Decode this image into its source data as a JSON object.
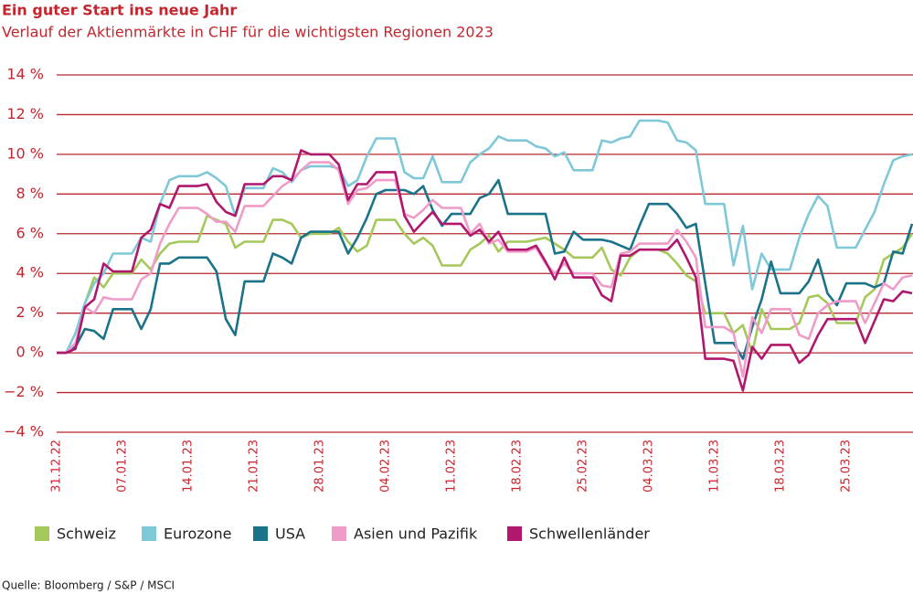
{
  "chart_data": {
    "type": "line",
    "title": "Ein guter Start ins neue Jahr",
    "subtitle": "Verlauf der Aktienmärkte in CHF für die wichtigsten Regionen 2023",
    "source": "Quelle: Bloomberg / S&P / MSCI",
    "legend": "bottom",
    "grid": true,
    "ylim": [
      -4,
      14
    ],
    "yticks": [
      {
        "value": -4,
        "label": "−4 %"
      },
      {
        "value": -2,
        "label": "−2 %"
      },
      {
        "value": 0,
        "label": "0 %"
      },
      {
        "value": 2,
        "label": "2 %"
      },
      {
        "value": 4,
        "label": "4 %"
      },
      {
        "value": 6,
        "label": "6 %"
      },
      {
        "value": 8,
        "label": "8 %"
      },
      {
        "value": 10,
        "label": "10 %"
      },
      {
        "value": 12,
        "label": "12 %"
      },
      {
        "value": 14,
        "label": "14 %"
      }
    ],
    "categories": [
      "31.12.22",
      null,
      null,
      null,
      null,
      null,
      null,
      "07.01.23",
      null,
      null,
      null,
      null,
      null,
      null,
      "14.01.23",
      null,
      null,
      null,
      null,
      null,
      null,
      "21.01.23",
      null,
      null,
      null,
      null,
      null,
      null,
      "28.01.23",
      null,
      null,
      null,
      null,
      null,
      null,
      "04.02.23",
      null,
      null,
      null,
      null,
      null,
      null,
      "11.02.23",
      null,
      null,
      null,
      null,
      null,
      null,
      "18.02.23",
      null,
      null,
      null,
      null,
      null,
      null,
      "25.02.23",
      null,
      null,
      null,
      null,
      null,
      null,
      "04.03.23",
      null,
      null,
      null,
      null,
      null,
      null,
      "11.03.23",
      null,
      null,
      null,
      null,
      null,
      null,
      "18.03.23",
      null,
      null,
      null,
      null,
      null,
      null,
      "25.03.23",
      null,
      null,
      null,
      null,
      null,
      null,
      null
    ],
    "series": [
      {
        "name": "Schweiz",
        "color": "#a5c85a",
        "values": [
          0,
          0,
          0.3,
          2.5,
          3.8,
          3.3,
          4.0,
          4.0,
          4.0,
          4.7,
          4.2,
          5.0,
          5.5,
          5.6,
          5.6,
          5.6,
          6.9,
          6.7,
          6.5,
          5.3,
          5.6,
          5.6,
          5.6,
          6.7,
          6.7,
          6.5,
          5.8,
          6.0,
          6.0,
          6.0,
          6.3,
          5.6,
          5.1,
          5.4,
          6.7,
          6.7,
          6.7,
          6.0,
          5.5,
          5.8,
          5.4,
          4.4,
          4.4,
          4.4,
          5.2,
          5.5,
          5.9,
          5.1,
          5.6,
          5.6,
          5.6,
          5.7,
          5.8,
          5.5,
          5.2,
          4.8,
          4.8,
          4.8,
          5.3,
          4.2,
          3.9,
          4.8,
          5.2,
          5.2,
          5.2,
          5.0,
          4.5,
          3.9,
          3.6,
          2.0,
          2.0,
          2.0,
          1.0,
          1.4,
          0.0,
          2.2,
          1.2,
          1.2,
          1.2,
          1.5,
          2.8,
          2.9,
          2.5,
          1.5,
          1.5,
          1.5,
          2.8,
          3.2,
          4.7,
          5.0,
          5.3,
          6.0
        ]
      },
      {
        "name": "Eurozone",
        "color": "#7ec8d8",
        "values": [
          0,
          0,
          1.0,
          2.5,
          3.5,
          4.0,
          5.0,
          5.0,
          5.0,
          5.8,
          5.6,
          7.5,
          8.7,
          8.9,
          8.9,
          8.9,
          9.1,
          8.8,
          8.4,
          6.9,
          8.3,
          8.3,
          8.3,
          9.3,
          9.1,
          8.6,
          9.2,
          9.4,
          9.4,
          9.4,
          9.3,
          8.4,
          8.7,
          9.9,
          10.8,
          10.8,
          10.8,
          9.1,
          8.8,
          8.8,
          9.9,
          8.6,
          8.6,
          8.6,
          9.6,
          10.0,
          10.3,
          10.9,
          10.7,
          10.7,
          10.7,
          10.4,
          10.3,
          9.9,
          10.1,
          9.2,
          9.2,
          9.2,
          10.7,
          10.6,
          10.8,
          10.9,
          11.7,
          11.7,
          11.7,
          11.6,
          10.7,
          10.6,
          10.2,
          7.5,
          7.5,
          7.5,
          4.4,
          6.4,
          3.2,
          5.0,
          4.2,
          4.2,
          4.2,
          5.8,
          7.0,
          7.9,
          7.4,
          5.3,
          5.3,
          5.3,
          6.2,
          7.1,
          8.5,
          9.7,
          9.9,
          10.0
        ]
      },
      {
        "name": "USA",
        "color": "#1a7389",
        "values": [
          0,
          0,
          0.3,
          1.2,
          1.1,
          0.7,
          2.2,
          2.2,
          2.2,
          1.2,
          2.2,
          4.5,
          4.5,
          4.8,
          4.8,
          4.8,
          4.8,
          4.1,
          1.7,
          0.9,
          3.6,
          3.6,
          3.6,
          5.0,
          4.8,
          4.5,
          5.8,
          6.1,
          6.1,
          6.1,
          6.1,
          5.0,
          5.8,
          6.8,
          8.0,
          8.2,
          8.2,
          8.2,
          8.0,
          8.4,
          7.2,
          6.4,
          7.0,
          7.0,
          7.0,
          7.8,
          8.0,
          8.7,
          7.0,
          7.0,
          7.0,
          7.0,
          7.0,
          5.0,
          5.1,
          6.1,
          5.7,
          5.7,
          5.7,
          5.6,
          5.4,
          5.2,
          6.4,
          7.5,
          7.5,
          7.5,
          7.0,
          6.3,
          6.5,
          3.5,
          0.5,
          0.5,
          0.5,
          -0.3,
          1.3,
          2.7,
          4.6,
          3.0,
          3.0,
          3.0,
          3.6,
          4.7,
          3.0,
          2.4,
          3.5,
          3.5,
          3.5,
          3.3,
          3.5,
          5.1,
          5.0,
          6.5
        ]
      },
      {
        "name": "Asien und Pazifik",
        "color": "#f09cc8",
        "values": [
          0,
          0,
          0.5,
          2.3,
          2.0,
          2.8,
          2.7,
          2.7,
          2.7,
          3.7,
          4.0,
          5.5,
          6.5,
          7.3,
          7.3,
          7.3,
          7.0,
          6.6,
          6.6,
          6.1,
          7.4,
          7.4,
          7.4,
          7.9,
          8.4,
          8.7,
          9.2,
          9.6,
          9.6,
          9.6,
          9.2,
          7.5,
          8.2,
          8.3,
          8.7,
          8.7,
          8.7,
          7.0,
          6.8,
          7.2,
          7.7,
          7.3,
          7.3,
          7.3,
          6.0,
          6.5,
          5.5,
          5.7,
          5.1,
          5.1,
          5.1,
          5.3,
          4.5,
          4.0,
          4.5,
          4.0,
          4.0,
          4.0,
          3.4,
          3.3,
          5.0,
          5.1,
          5.5,
          5.5,
          5.5,
          5.5,
          6.2,
          5.6,
          4.8,
          1.3,
          1.3,
          1.3,
          1.0,
          -1.2,
          1.8,
          1.0,
          2.2,
          2.2,
          2.2,
          0.9,
          0.7,
          2.0,
          2.4,
          2.6,
          2.6,
          2.6,
          1.5,
          2.5,
          3.5,
          3.2,
          3.8,
          3.9
        ]
      },
      {
        "name": "Schwellenländer",
        "color": "#b0186e",
        "values": [
          0,
          0,
          0.2,
          2.3,
          2.7,
          4.5,
          4.1,
          4.1,
          4.1,
          5.8,
          6.2,
          7.5,
          7.3,
          8.4,
          8.4,
          8.4,
          8.5,
          7.6,
          7.1,
          6.9,
          8.5,
          8.5,
          8.5,
          8.9,
          8.9,
          8.7,
          10.2,
          10.0,
          10.0,
          10.0,
          9.5,
          7.7,
          8.5,
          8.5,
          9.1,
          9.1,
          9.1,
          6.9,
          6.1,
          6.6,
          7.1,
          6.5,
          6.5,
          6.5,
          5.9,
          6.2,
          5.6,
          6.1,
          5.2,
          5.2,
          5.2,
          5.4,
          4.6,
          3.7,
          4.8,
          3.8,
          3.8,
          3.8,
          2.9,
          2.6,
          4.9,
          4.9,
          5.2,
          5.2,
          5.2,
          5.2,
          5.7,
          4.8,
          3.8,
          -0.3,
          -0.3,
          -0.3,
          -0.4,
          -1.9,
          0.3,
          -0.3,
          0.4,
          0.4,
          0.4,
          -0.5,
          -0.1,
          0.9,
          1.7,
          1.7,
          1.7,
          1.7,
          0.5,
          1.6,
          2.7,
          2.6,
          3.1,
          3.0
        ]
      }
    ]
  }
}
